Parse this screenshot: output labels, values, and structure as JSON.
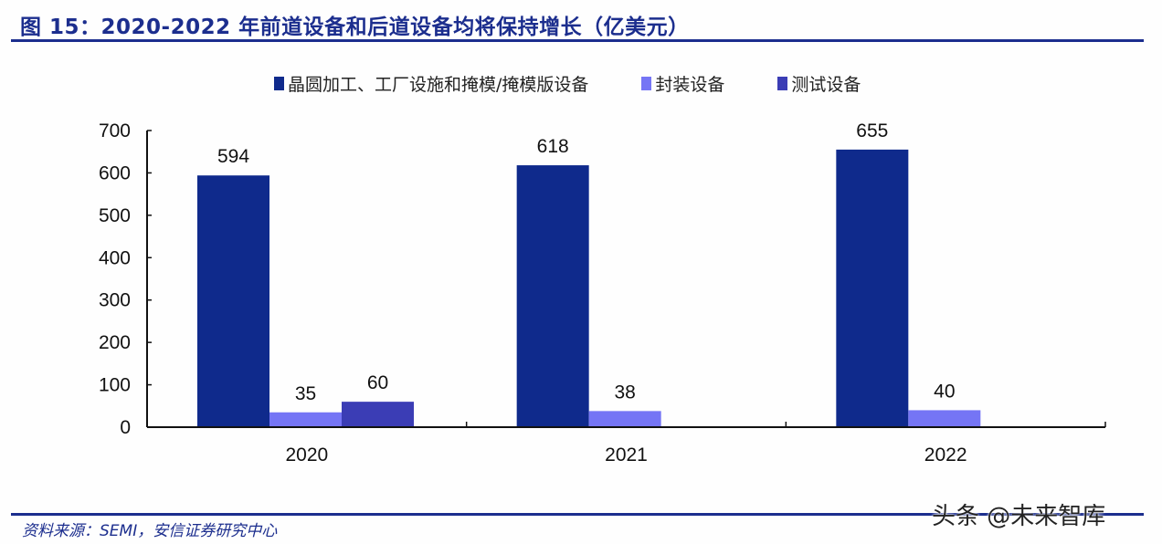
{
  "header": {
    "title": "图 15：2020-2022 年前道设备和后道设备均将保持增长（亿美元）"
  },
  "legend": [
    {
      "label": "晶圆加工、工厂设施和掩模/掩模版设备",
      "color": "#0f2a8c"
    },
    {
      "label": "封装设备",
      "color": "#7575f5"
    },
    {
      "label": "测试设备",
      "color": "#3b3db5"
    }
  ],
  "footer": {
    "source": "资料来源：SEMI，安信证券研究中心",
    "watermark": "头条 @未来智库"
  },
  "chart_data": {
    "type": "bar",
    "title": "2020-2022 年前道设备和后道设备均将保持增长（亿美元）",
    "categories": [
      "2020",
      "2021",
      "2022"
    ],
    "series": [
      {
        "name": "晶圆加工、工厂设施和掩模/掩模版设备",
        "values": [
          594,
          618,
          655
        ],
        "color": "#0f2a8c"
      },
      {
        "name": "封装设备",
        "values": [
          35,
          38,
          40
        ],
        "color": "#7575f5"
      },
      {
        "name": "测试设备",
        "values": [
          60,
          null,
          null
        ],
        "color": "#3b3db5"
      }
    ],
    "data_labels": {
      "2020": [
        "594",
        "35",
        "60"
      ],
      "2021": [
        "618",
        "38"
      ],
      "2022": [
        "655",
        "40"
      ]
    },
    "xlabel": "",
    "ylabel": "亿美元",
    "ylim": [
      0,
      700
    ],
    "yticks": [
      "0",
      "100",
      "200",
      "300",
      "400",
      "500",
      "600",
      "700"
    ],
    "grid": false,
    "legend_position": "top"
  }
}
